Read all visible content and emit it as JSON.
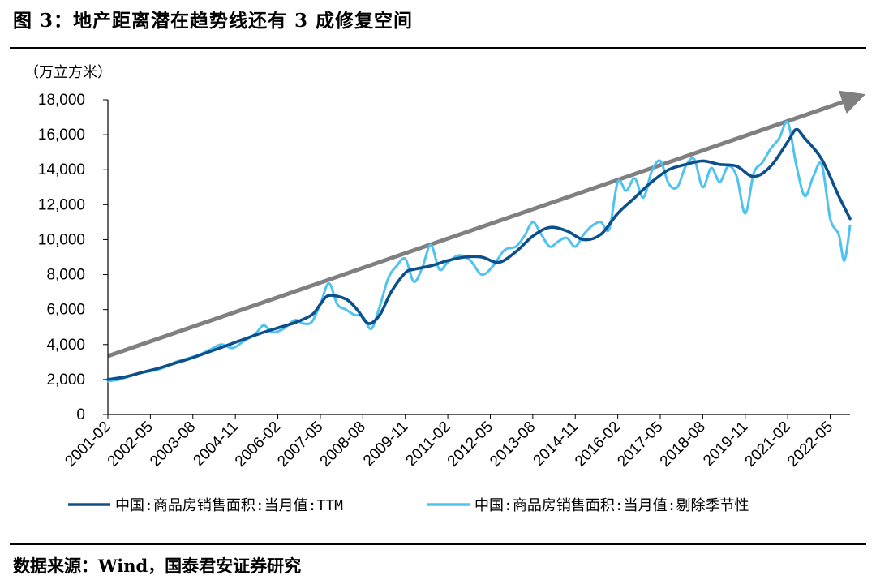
{
  "figure": {
    "title": "图 3：地产距离潜在趋势线还有 3 成修复空间",
    "source": "数据来源：Wind，国泰君安证券研究"
  },
  "chart_data": {
    "type": "line",
    "ylabel": "（万立方米）",
    "ylim": [
      0,
      18000
    ],
    "yticks": [
      0,
      2000,
      4000,
      6000,
      8000,
      10000,
      12000,
      14000,
      16000,
      18000
    ],
    "ytick_labels": [
      "0",
      "2,000",
      "4,000",
      "6,000",
      "8,000",
      "10,000",
      "12,000",
      "14,000",
      "16,000",
      "18,000"
    ],
    "xlim": [
      "2001-02",
      "2022-12"
    ],
    "xtick_labels": [
      "2001-02",
      "2002-05",
      "2003-08",
      "2004-11",
      "2006-02",
      "2007-05",
      "2008-08",
      "2009-11",
      "2011-02",
      "2012-05",
      "2013-08",
      "2014-11",
      "2016-02",
      "2017-05",
      "2018-08",
      "2019-11",
      "2021-02",
      "2022-05"
    ],
    "grid": false,
    "legend_position": "bottom",
    "colors": {
      "ttm": "#0d4f8b",
      "sa": "#4fc3f0",
      "trend": "#808080"
    },
    "series": [
      {
        "name": "中国:商品房销售面积:当月值:TTM",
        "x": [
          "2001-02",
          "2001-08",
          "2002-02",
          "2002-08",
          "2003-02",
          "2003-08",
          "2004-02",
          "2004-08",
          "2005-02",
          "2005-08",
          "2006-02",
          "2006-08",
          "2007-02",
          "2007-05",
          "2007-08",
          "2008-02",
          "2008-06",
          "2008-10",
          "2009-02",
          "2009-06",
          "2009-11",
          "2010-02",
          "2010-08",
          "2011-02",
          "2011-08",
          "2012-02",
          "2012-08",
          "2013-02",
          "2013-08",
          "2014-02",
          "2014-08",
          "2015-02",
          "2015-08",
          "2016-02",
          "2016-08",
          "2017-02",
          "2017-08",
          "2018-02",
          "2018-08",
          "2019-02",
          "2019-08",
          "2020-02",
          "2020-08",
          "2021-02",
          "2021-05",
          "2021-08",
          "2022-02",
          "2022-08",
          "2022-12"
        ],
        "values": [
          2000,
          2150,
          2400,
          2650,
          2950,
          3250,
          3600,
          3950,
          4300,
          4650,
          4950,
          5250,
          5700,
          6300,
          6800,
          6600,
          6000,
          5200,
          5700,
          7000,
          8100,
          8300,
          8500,
          8800,
          9000,
          9000,
          8700,
          9300,
          10200,
          10700,
          10500,
          10000,
          10300,
          11500,
          12400,
          13300,
          14000,
          14300,
          14500,
          14300,
          14200,
          13600,
          14200,
          15600,
          16300,
          15800,
          14600,
          12500,
          11200
        ]
      },
      {
        "name": "中国:商品房销售面积:当月值:剔除季节性",
        "x": [
          "2001-02",
          "2001-06",
          "2001-10",
          "2002-02",
          "2002-06",
          "2002-10",
          "2003-02",
          "2003-06",
          "2003-10",
          "2004-02",
          "2004-06",
          "2004-10",
          "2005-02",
          "2005-06",
          "2005-09",
          "2005-12",
          "2006-04",
          "2006-08",
          "2006-11",
          "2007-02",
          "2007-05",
          "2007-08",
          "2007-11",
          "2008-02",
          "2008-05",
          "2008-08",
          "2008-11",
          "2009-02",
          "2009-05",
          "2009-08",
          "2009-11",
          "2010-02",
          "2010-05",
          "2010-08",
          "2010-11",
          "2011-02",
          "2011-06",
          "2011-10",
          "2012-02",
          "2012-06",
          "2012-10",
          "2013-02",
          "2013-05",
          "2013-08",
          "2013-11",
          "2014-02",
          "2014-05",
          "2014-08",
          "2014-11",
          "2015-02",
          "2015-05",
          "2015-08",
          "2015-11",
          "2016-02",
          "2016-05",
          "2016-08",
          "2016-11",
          "2017-02",
          "2017-05",
          "2017-08",
          "2017-11",
          "2018-02",
          "2018-05",
          "2018-08",
          "2018-11",
          "2019-02",
          "2019-05",
          "2019-08",
          "2019-11",
          "2020-02",
          "2020-05",
          "2020-08",
          "2020-11",
          "2021-02",
          "2021-05",
          "2021-08",
          "2021-11",
          "2022-02",
          "2022-05",
          "2022-08",
          "2022-10",
          "2022-12"
        ],
        "values": [
          1900,
          2000,
          2200,
          2400,
          2500,
          2700,
          3000,
          3200,
          3400,
          3700,
          4000,
          3800,
          4200,
          4600,
          5100,
          4700,
          4900,
          5400,
          5200,
          5300,
          6300,
          7500,
          6300,
          6000,
          5700,
          5600,
          4900,
          6200,
          7800,
          8500,
          8900,
          7600,
          8400,
          9700,
          8300,
          8700,
          9100,
          8800,
          8000,
          8500,
          9400,
          9600,
          10200,
          11000,
          10300,
          9600,
          9900,
          10100,
          9600,
          10300,
          10800,
          11000,
          10600,
          13300,
          12800,
          13500,
          12400,
          13900,
          14500,
          13200,
          13000,
          14200,
          14600,
          13000,
          14100,
          13300,
          14200,
          13600,
          11500,
          13800,
          14400,
          15200,
          15800,
          16700,
          14300,
          12500,
          13600,
          14300,
          11200,
          10300,
          8800,
          10800
        ]
      }
    ]
  }
}
